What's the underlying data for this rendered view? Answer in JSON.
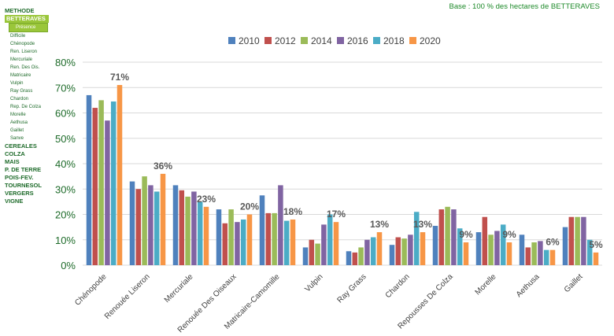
{
  "menu": {
    "items": [
      {
        "label": "METHODE"
      },
      {
        "label": "BETTERAVES",
        "selected": true,
        "sub": [
          "Présence",
          "Difficile",
          "Chénopode",
          "Ren. Liseron",
          "Mercuriale",
          "Ren. Des Ois.",
          "Matricaire",
          "Vulpin",
          "Ray Grass",
          "Chardon",
          "Rep. De Colza",
          "Morelle",
          "Aethusa",
          "Gaillet",
          "Sanve"
        ]
      },
      {
        "label": "CEREALES"
      },
      {
        "label": "COLZA"
      },
      {
        "label": "MAIS"
      },
      {
        "label": "P. DE TERRE"
      },
      {
        "label": "POIS-FEV."
      },
      {
        "label": "TOURNESOL"
      },
      {
        "label": "VERGERS"
      },
      {
        "label": "VIGNE"
      }
    ]
  },
  "base_label": "Base : 100 % des hectares de BETTERAVES",
  "chart_data": {
    "type": "bar",
    "categories": [
      "Chénopode",
      "Renouée Liseron",
      "Mercuriale",
      "Renouée Des Oiseaux",
      "Matricaire-Camomille",
      "Vulpin",
      "Ray Grass",
      "Chardon",
      "Repousses De Colza",
      "Morelle",
      "Aethusa",
      "Gaillet"
    ],
    "series": [
      {
        "name": "2010",
        "color": "#4f81bd",
        "values": [
          67,
          33,
          31.5,
          22,
          27.5,
          7,
          5.5,
          8,
          15.5,
          13,
          12,
          15
        ]
      },
      {
        "name": "2012",
        "color": "#c0504d",
        "values": [
          62,
          30,
          29.5,
          16.5,
          20.5,
          10,
          5,
          11,
          22,
          19,
          7,
          19
        ]
      },
      {
        "name": "2014",
        "color": "#9bbb59",
        "values": [
          65,
          35,
          27,
          22,
          20.5,
          8.5,
          7,
          10.5,
          23,
          12,
          9,
          19
        ]
      },
      {
        "name": "2016",
        "color": "#8064a2",
        "values": [
          57,
          31.5,
          29,
          17,
          31.5,
          16,
          10,
          12,
          22,
          13.5,
          9.5,
          19
        ]
      },
      {
        "name": "2018",
        "color": "#4bacc6",
        "values": [
          64.5,
          29,
          25,
          18,
          17.5,
          20,
          11,
          21,
          14.5,
          16,
          6,
          10
        ]
      },
      {
        "name": "2020",
        "color": "#f79646",
        "values": [
          71,
          36,
          23,
          20,
          18,
          17,
          13,
          13,
          9,
          9,
          6,
          5
        ]
      }
    ],
    "data_labels": [
      "71%",
      "36%",
      "23%",
      "20%",
      "18%",
      "17%",
      "13%",
      "13%",
      "9%",
      "9%",
      "6%",
      "5%"
    ],
    "yticks": [
      "0%",
      "10%",
      "20%",
      "30%",
      "40%",
      "50%",
      "60%",
      "70%",
      "80%"
    ],
    "ylim": [
      0,
      80
    ],
    "grid": true,
    "legend": "top"
  }
}
